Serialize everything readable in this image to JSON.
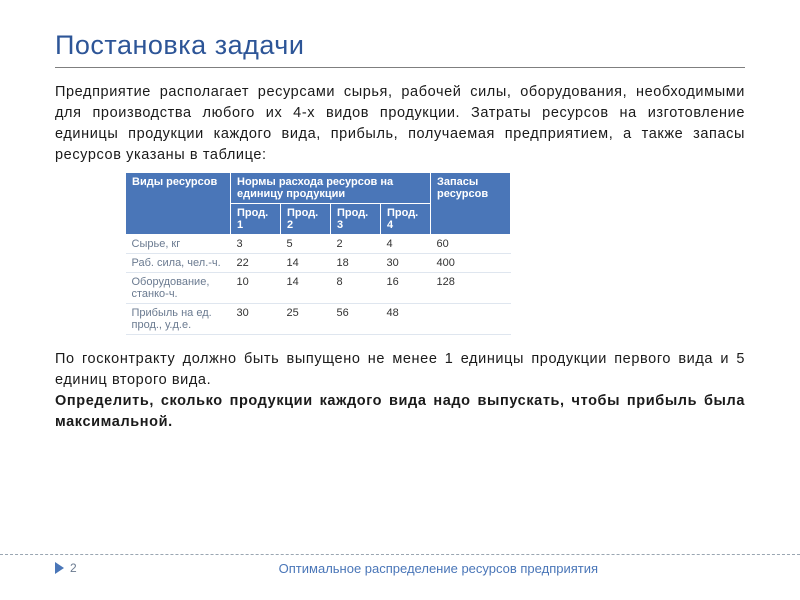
{
  "title": "Постановка задачи",
  "paragraph1": "Предприятие располагает ресурсами сырья, рабочей силы, оборудования, необходимыми для производства любого их 4-х видов продукции. Затраты ресурсов на изготовление единицы продукции каждого вида, прибыль, получаемая предприятием, а также запасы ресурсов указаны в таблице:",
  "paragraph2": "По госконтракту должно быть выпущено не менее 1 единицы продукции первого вида и 5 единиц второго вида.",
  "paragraph3_bold": "Определить, сколько продукции каждого вида надо выпускать, чтобы прибыль была максимальной.",
  "table": {
    "header_bg": "#4a76b8",
    "header_fg": "#ffffff",
    "row_border": "#dfe6ef",
    "head_resources": "Виды ресурсов",
    "head_group": "Нормы расхода ресурсов на единицу продукции",
    "head_stock": "Запасы ресурсов",
    "prod1": "Прод. 1",
    "prod2": "Прод. 2",
    "prod3": "Прод. 3",
    "prod4": "Прод. 4",
    "rows": [
      {
        "label": "Сырье, кг",
        "v1": "3",
        "v2": "5",
        "v3": "2",
        "v4": "4",
        "stock": "60"
      },
      {
        "label": "Раб. сила, чел.-ч.",
        "v1": "22",
        "v2": "14",
        "v3": "18",
        "v4": "30",
        "stock": "400"
      },
      {
        "label": "Оборудование, станко-ч.",
        "v1": "10",
        "v2": "14",
        "v3": "8",
        "v4": "16",
        "stock": "128"
      },
      {
        "label": "Прибыль на ед. прод., у.д.е.",
        "v1": "30",
        "v2": "25",
        "v3": "56",
        "v4": "48",
        "stock": ""
      }
    ]
  },
  "footer": {
    "page": "2",
    "caption": "Оптимальное распределение ресурсов предприятия"
  },
  "colors": {
    "title": "#2d5597",
    "accent": "#4a76b8",
    "text": "#1a1a1a",
    "muted": "#6a7a90"
  }
}
